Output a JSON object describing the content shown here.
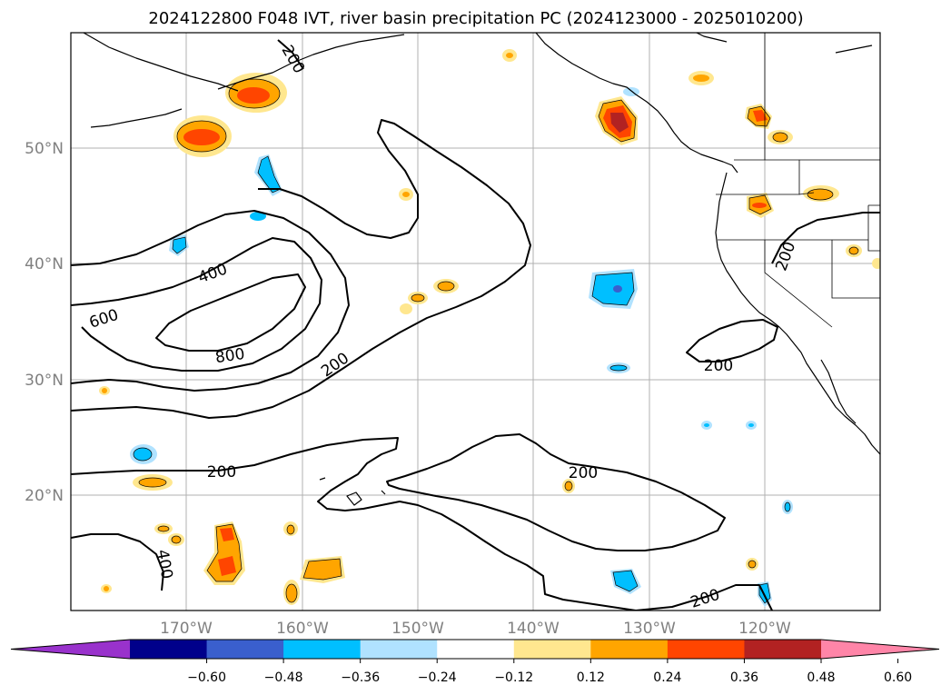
{
  "title": "2024122800 F048 IVT, river basin precipitation PC (2024123000 - 2025010200)",
  "map": {
    "lat_labels": [
      "50°N",
      "40°N",
      "30°N",
      "20°N"
    ],
    "lon_labels": [
      "170°W",
      "160°W",
      "150°W",
      "140°W",
      "130°W",
      "120°W"
    ],
    "gridlines": true,
    "region": "North Pacific / US West Coast"
  },
  "contours": {
    "variable": "IVT",
    "levels": [
      200,
      400,
      600,
      800
    ],
    "labels": [
      "400",
      "600",
      "800",
      "200",
      "200",
      "200",
      "200",
      "200",
      "400",
      "200",
      "200"
    ]
  },
  "colorbar": {
    "ticks": [
      "−0.60",
      "−0.48",
      "−0.36",
      "−0.24",
      "−0.12",
      "0.12",
      "0.24",
      "0.36",
      "0.48",
      "0.60"
    ],
    "colors": [
      "#9932cc",
      "#00008b",
      "#3a5fcd",
      "#00bfff",
      "#b0e2ff",
      "#ffffff",
      "#ffe78f",
      "#ffa500",
      "#ff4500",
      "#b22222",
      "#ff85a8"
    ],
    "extend": "both"
  },
  "colors": {
    "light_yellow": "#ffe78f",
    "orange": "#ffa500",
    "red_orange": "#ff4500",
    "dark_red": "#b22222",
    "light_blue": "#b0e2ff",
    "deep_sky_blue": "#00bfff",
    "royal_blue": "#3a5fcd"
  }
}
